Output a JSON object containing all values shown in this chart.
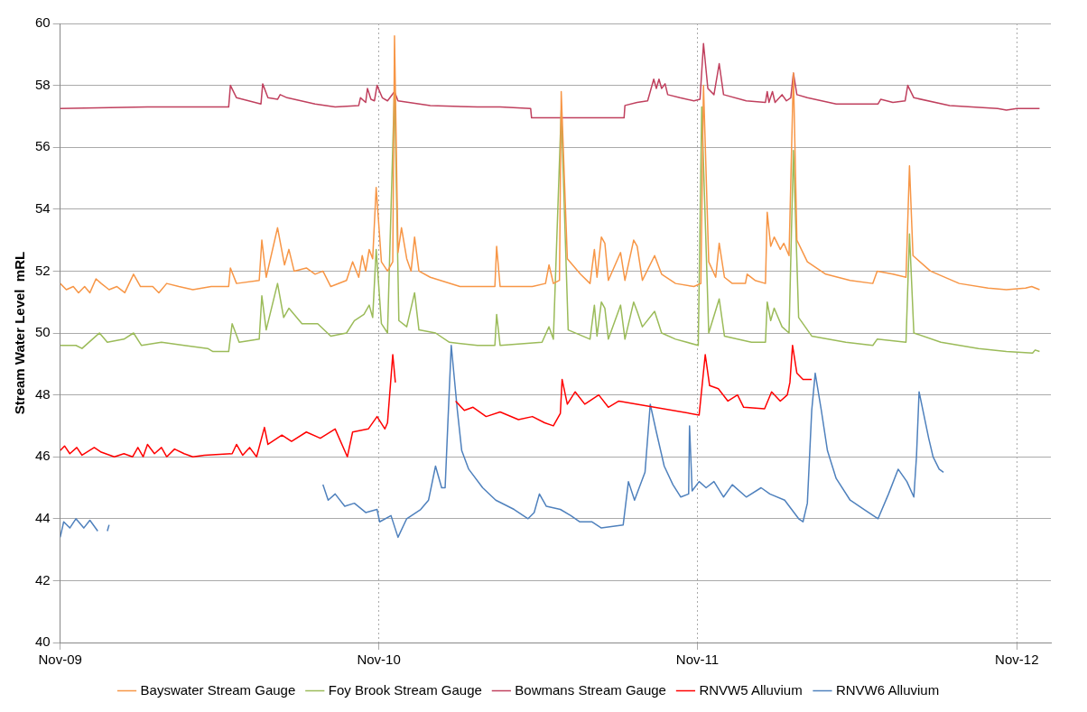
{
  "chart_data": {
    "type": "line",
    "ylabel": "Stream Water Level  mRL",
    "xlim": [
      "2009-11-01",
      "2012-12-10"
    ],
    "xticks": [
      {
        "value": "2009-11-01",
        "label": "Nov-09"
      },
      {
        "value": "2010-11-01",
        "label": "Nov-10"
      },
      {
        "value": "2011-11-01",
        "label": "Nov-11"
      },
      {
        "value": "2012-11-01",
        "label": "Nov-12"
      }
    ],
    "ylim": [
      40,
      60
    ],
    "yticks": [
      40,
      42,
      44,
      46,
      48,
      50,
      52,
      54,
      56,
      58,
      60
    ],
    "grid": true,
    "legend": "bottom",
    "marker": "none",
    "line_style": "solid",
    "series": [
      {
        "name": "Bayswater Stream Gauge",
        "color": "#f79646",
        "x": [
          "2009-11-01",
          "2009-11-08",
          "2009-11-16",
          "2009-11-22",
          "2009-11-29",
          "2009-12-05",
          "2009-12-12",
          "2009-12-18",
          "2009-12-27",
          "2010-01-05",
          "2010-01-14",
          "2010-01-24",
          "2010-02-01",
          "2010-02-15",
          "2010-02-22",
          "2010-03-03",
          "2010-03-17",
          "2010-04-02",
          "2010-04-23",
          "2010-05-13",
          "2010-05-15",
          "2010-05-22",
          "2010-06-17",
          "2010-06-20",
          "2010-06-25",
          "2010-07-08",
          "2010-07-16",
          "2010-07-21",
          "2010-07-27",
          "2010-08-10",
          "2010-08-20",
          "2010-08-29",
          "2010-09-07",
          "2010-09-25",
          "2010-10-02",
          "2010-10-09",
          "2010-10-13",
          "2010-10-17",
          "2010-10-21",
          "2010-10-25",
          "2010-10-29",
          "2010-11-04",
          "2010-11-11",
          "2010-11-17",
          "2010-11-19",
          "2010-11-23",
          "2010-11-27",
          "2010-12-03",
          "2010-12-08",
          "2010-12-12",
          "2010-12-17",
          "2010-12-30",
          "2011-02-02",
          "2011-03-04",
          "2011-03-14",
          "2011-03-16",
          "2011-03-20",
          "2011-04-26",
          "2011-05-11",
          "2011-05-15",
          "2011-05-20",
          "2011-05-27",
          "2011-05-29",
          "2011-06-05",
          "2011-06-20",
          "2011-07-01",
          "2011-07-06",
          "2011-07-09",
          "2011-07-14",
          "2011-07-18",
          "2011-07-22",
          "2011-08-05",
          "2011-08-10",
          "2011-08-20",
          "2011-08-24",
          "2011-08-30",
          "2011-09-13",
          "2011-09-21",
          "2011-10-07",
          "2011-10-28",
          "2011-11-05",
          "2011-11-08",
          "2011-11-14",
          "2011-11-22",
          "2011-11-26",
          "2011-12-02",
          "2011-12-11",
          "2011-12-26",
          "2011-12-28",
          "2012-01-06",
          "2012-01-18",
          "2012-01-20",
          "2012-01-24",
          "2012-01-28",
          "2012-02-04",
          "2012-02-08",
          "2012-02-14",
          "2012-02-19",
          "2012-02-23",
          "2012-03-06",
          "2012-03-27",
          "2012-04-24",
          "2012-05-20",
          "2012-05-25",
          "2012-06-12",
          "2012-06-27",
          "2012-07-01",
          "2012-07-05",
          "2012-07-25",
          "2012-08-27",
          "2012-09-29",
          "2012-10-20",
          "2012-11-11",
          "2012-11-18",
          "2012-11-27"
        ],
        "values": [
          51.6,
          51.4,
          51.5,
          51.3,
          51.5,
          51.3,
          51.75,
          51.6,
          51.4,
          51.5,
          51.3,
          51.9,
          51.5,
          51.5,
          51.3,
          51.6,
          51.5,
          51.4,
          51.5,
          51.5,
          52.1,
          51.6,
          51.7,
          53.0,
          51.8,
          53.4,
          52.2,
          52.7,
          52.0,
          52.1,
          51.9,
          52.0,
          51.5,
          51.7,
          52.3,
          51.8,
          52.5,
          52.0,
          52.7,
          52.4,
          54.7,
          52.3,
          52.0,
          52.3,
          59.6,
          52.6,
          53.4,
          52.4,
          52.0,
          53.1,
          52.0,
          51.8,
          51.5,
          51.5,
          51.5,
          52.8,
          51.5,
          51.5,
          51.6,
          52.2,
          51.6,
          51.7,
          57.8,
          52.4,
          51.9,
          51.6,
          52.7,
          51.8,
          53.1,
          52.9,
          51.7,
          52.6,
          51.7,
          53.0,
          52.8,
          51.7,
          52.5,
          51.9,
          51.6,
          51.5,
          51.6,
          58.0,
          52.3,
          51.8,
          52.9,
          51.8,
          51.6,
          51.6,
          51.9,
          51.7,
          51.6,
          53.9,
          52.8,
          53.1,
          52.7,
          52.9,
          52.5,
          58.4,
          53.0,
          52.3,
          51.9,
          51.7,
          51.6,
          52.0,
          51.9,
          51.8,
          55.4,
          52.5,
          52.0,
          51.6,
          51.45,
          51.4,
          51.45,
          51.5,
          51.4
        ]
      },
      {
        "name": "Foy Brook Stream Gauge",
        "color": "#9bbb59",
        "x": [
          "2009-11-01",
          "2009-11-19",
          "2009-11-26",
          "2009-12-12",
          "2009-12-16",
          "2009-12-25",
          "2010-01-13",
          "2010-01-24",
          "2010-02-02",
          "2010-02-25",
          "2010-03-23",
          "2010-04-19",
          "2010-04-25",
          "2010-05-13",
          "2010-05-17",
          "2010-05-25",
          "2010-06-17",
          "2010-06-20",
          "2010-06-25",
          "2010-07-08",
          "2010-07-15",
          "2010-07-21",
          "2010-08-05",
          "2010-08-23",
          "2010-09-07",
          "2010-09-25",
          "2010-10-04",
          "2010-10-15",
          "2010-10-21",
          "2010-10-25",
          "2010-10-29",
          "2010-11-04",
          "2010-11-11",
          "2010-11-19",
          "2010-11-24",
          "2010-12-03",
          "2010-12-12",
          "2010-12-17",
          "2011-01-05",
          "2011-01-21",
          "2011-02-22",
          "2011-03-14",
          "2011-03-16",
          "2011-03-20",
          "2011-05-07",
          "2011-05-15",
          "2011-05-20",
          "2011-05-29",
          "2011-06-06",
          "2011-07-01",
          "2011-07-06",
          "2011-07-09",
          "2011-07-14",
          "2011-07-18",
          "2011-07-22",
          "2011-08-05",
          "2011-08-10",
          "2011-08-20",
          "2011-08-24",
          "2011-08-30",
          "2011-09-13",
          "2011-09-21",
          "2011-10-07",
          "2011-11-02",
          "2011-11-06",
          "2011-11-14",
          "2011-11-26",
          "2011-12-02",
          "2012-01-02",
          "2012-01-18",
          "2012-01-20",
          "2012-01-24",
          "2012-01-28",
          "2012-02-06",
          "2012-02-14",
          "2012-02-19",
          "2012-02-25",
          "2012-03-11",
          "2012-04-19",
          "2012-05-20",
          "2012-05-25",
          "2012-06-27",
          "2012-07-01",
          "2012-07-06",
          "2012-08-06",
          "2012-09-18",
          "2012-10-20",
          "2012-11-19",
          "2012-11-22",
          "2012-11-27"
        ],
        "values": [
          49.6,
          49.6,
          49.5,
          49.9,
          50.0,
          49.7,
          49.8,
          50.0,
          49.6,
          49.7,
          49.6,
          49.5,
          49.4,
          49.4,
          50.3,
          49.7,
          49.8,
          51.2,
          50.1,
          51.6,
          50.5,
          50.8,
          50.3,
          50.3,
          49.9,
          50.0,
          50.4,
          50.6,
          50.9,
          50.5,
          52.7,
          50.3,
          50.0,
          58.0,
          50.4,
          50.2,
          51.3,
          50.1,
          50.0,
          49.7,
          49.6,
          49.6,
          50.6,
          49.6,
          49.7,
          50.2,
          49.8,
          57.2,
          50.1,
          49.8,
          50.9,
          49.9,
          51.0,
          50.8,
          49.8,
          50.9,
          49.8,
          51.0,
          50.7,
          50.2,
          50.7,
          50.0,
          49.8,
          49.6,
          57.3,
          50.0,
          51.1,
          49.9,
          49.7,
          49.7,
          51.0,
          50.4,
          50.8,
          50.2,
          50.0,
          55.9,
          50.5,
          49.9,
          49.7,
          49.6,
          49.8,
          49.7,
          53.2,
          50.0,
          49.7,
          49.5,
          49.4,
          49.35,
          49.45,
          49.4
        ]
      },
      {
        "name": "Bowmans Stream Gauge",
        "color": "#c0405e",
        "x": [
          "2009-11-01",
          "2010-02-09",
          "2010-05-13",
          "2010-05-15",
          "2010-05-22",
          "2010-06-19",
          "2010-06-21",
          "2010-06-27",
          "2010-07-08",
          "2010-07-11",
          "2010-07-19",
          "2010-08-20",
          "2010-09-12",
          "2010-10-09",
          "2010-10-11",
          "2010-10-17",
          "2010-10-19",
          "2010-10-23",
          "2010-10-27",
          "2010-10-30",
          "2010-11-05",
          "2010-11-11",
          "2010-11-19",
          "2010-11-23",
          "2010-12-30",
          "2011-02-22",
          "2011-03-20",
          "2011-04-24",
          "2011-04-25",
          "2011-08-09",
          "2011-08-10",
          "2011-08-24",
          "2011-09-05",
          "2011-09-08",
          "2011-09-12",
          "2011-09-15",
          "2011-09-18",
          "2011-09-21",
          "2011-09-25",
          "2011-09-28",
          "2011-10-12",
          "2011-10-28",
          "2011-11-04",
          "2011-11-08",
          "2011-11-13",
          "2011-11-20",
          "2011-11-26",
          "2011-12-01",
          "2011-12-27",
          "2012-01-18",
          "2012-01-20",
          "2012-01-22",
          "2012-01-26",
          "2012-01-29",
          "2012-02-06",
          "2012-02-11",
          "2012-02-16",
          "2012-02-19",
          "2012-02-23",
          "2012-03-06",
          "2012-04-08",
          "2012-05-26",
          "2012-05-29",
          "2012-06-12",
          "2012-06-26",
          "2012-06-29",
          "2012-07-06",
          "2012-08-16",
          "2012-10-10",
          "2012-10-20",
          "2012-11-01",
          "2012-11-27"
        ],
        "values": [
          57.25,
          57.3,
          57.3,
          58.0,
          57.6,
          57.4,
          58.05,
          57.6,
          57.55,
          57.7,
          57.6,
          57.4,
          57.3,
          57.35,
          57.6,
          57.45,
          57.9,
          57.55,
          57.5,
          58.0,
          57.6,
          57.5,
          57.8,
          57.5,
          57.35,
          57.3,
          57.3,
          57.25,
          56.95,
          56.95,
          57.35,
          57.45,
          57.5,
          57.8,
          58.2,
          57.9,
          58.2,
          57.9,
          58.05,
          57.7,
          57.6,
          57.5,
          57.55,
          59.35,
          57.9,
          57.7,
          58.7,
          57.7,
          57.5,
          57.45,
          57.8,
          57.45,
          57.8,
          57.45,
          57.7,
          57.5,
          57.6,
          58.4,
          57.7,
          57.6,
          57.4,
          57.4,
          57.55,
          57.45,
          57.5,
          58.0,
          57.6,
          57.35,
          57.25,
          57.2,
          57.25,
          57.25
        ]
      },
      {
        "name": "RNVW5 Alluvium",
        "color": "#ff0000",
        "x": [
          "2009-11-01",
          "2009-11-06",
          "2009-11-12",
          "2009-11-20",
          "2009-11-26",
          "2009-12-10",
          "2009-12-18",
          "2010-01-02",
          "2010-01-13",
          "2010-01-23",
          "2010-01-29",
          "2010-02-04",
          "2010-02-09",
          "2010-02-17",
          "2010-02-25",
          "2010-03-03",
          "2010-03-12",
          "2010-03-23",
          "2010-04-02",
          "2010-04-15",
          "2010-05-17",
          "2010-05-22",
          "2010-05-29",
          "2010-06-06",
          "2010-06-14",
          "2010-06-23",
          "2010-06-27",
          "2010-07-13",
          "2010-07-24",
          "2010-08-10",
          "2010-08-26",
          "2010-09-12",
          "2010-09-26",
          "2010-10-02",
          "2010-10-20",
          "2010-10-30",
          "2010-11-08",
          "2010-11-11",
          "2010-11-17",
          "2010-11-20",
          "2010-12-15",
          "2011-01-28",
          "2011-02-07",
          "2011-02-17",
          "2011-03-04",
          "2011-03-20",
          "2011-04-10",
          "2011-04-26",
          "2011-05-10",
          "2011-05-20",
          "2011-05-28",
          "2011-05-30",
          "2011-06-05",
          "2011-06-14",
          "2011-06-25",
          "2011-07-11",
          "2011-07-22",
          "2011-08-03",
          "2011-11-03",
          "2011-11-10",
          "2011-11-15",
          "2011-11-25",
          "2011-12-06",
          "2011-12-17",
          "2011-12-24",
          "2012-01-17",
          "2012-01-25",
          "2012-02-04",
          "2012-02-12",
          "2012-02-15",
          "2012-02-18",
          "2012-02-23",
          "2012-03-01",
          "2012-03-11"
        ],
        "values": [
          46.2,
          46.35,
          46.1,
          46.3,
          46.05,
          46.3,
          46.15,
          46.0,
          46.1,
          46.0,
          46.3,
          46.0,
          46.4,
          46.1,
          46.3,
          46.0,
          46.25,
          46.1,
          46.0,
          46.05,
          46.1,
          46.4,
          46.05,
          46.3,
          46.0,
          46.95,
          46.4,
          46.7,
          46.5,
          46.8,
          46.6,
          46.9,
          46.0,
          46.8,
          46.9,
          47.3,
          46.9,
          47.1,
          49.3,
          48.4,
          null,
          47.8,
          47.5,
          47.6,
          47.3,
          47.45,
          47.2,
          47.3,
          47.1,
          47.0,
          47.4,
          48.5,
          47.7,
          48.1,
          47.7,
          48.0,
          47.6,
          47.8,
          47.35,
          49.3,
          48.3,
          48.2,
          47.8,
          48.0,
          47.6,
          47.55,
          48.1,
          47.8,
          48.0,
          48.4,
          49.6,
          48.7,
          48.5,
          48.5
        ]
      },
      {
        "name": "RNVW6 Alluvium",
        "color": "#4f81bd",
        "x": [
          "2009-11-01",
          "2009-11-05",
          "2009-11-12",
          "2009-11-19",
          "2009-11-28",
          "2009-12-05",
          "2009-12-14",
          "2009-12-18",
          "2009-12-25",
          "2009-12-27",
          "2010-04-01",
          "2010-08-29",
          "2010-09-04",
          "2010-09-12",
          "2010-09-23",
          "2010-10-04",
          "2010-10-17",
          "2010-10-30",
          "2010-11-02",
          "2010-11-15",
          "2010-11-23",
          "2010-12-03",
          "2010-12-19",
          "2010-12-28",
          "2011-01-05",
          "2011-01-12",
          "2011-01-16",
          "2011-01-19",
          "2011-01-23",
          "2011-01-30",
          "2011-02-04",
          "2011-02-12",
          "2011-02-28",
          "2011-03-15",
          "2011-04-05",
          "2011-04-21",
          "2011-04-28",
          "2011-05-04",
          "2011-05-12",
          "2011-05-28",
          "2011-06-09",
          "2011-06-19",
          "2011-07-03",
          "2011-07-14",
          "2011-08-08",
          "2011-08-14",
          "2011-08-21",
          "2011-09-02",
          "2011-09-08",
          "2011-09-15",
          "2011-09-24",
          "2011-10-04",
          "2011-10-13",
          "2011-10-22",
          "2011-10-23",
          "2011-10-26",
          "2011-11-03",
          "2011-11-11",
          "2011-11-20",
          "2011-12-01",
          "2011-12-11",
          "2011-12-27",
          "2012-01-13",
          "2012-01-23",
          "2012-02-09",
          "2012-02-25",
          "2012-03-01",
          "2012-03-06",
          "2012-03-11",
          "2012-03-15",
          "2012-03-22",
          "2012-03-29",
          "2012-04-08",
          "2012-04-24",
          "2012-05-10",
          "2012-05-26",
          "2012-06-07",
          "2012-06-18",
          "2012-06-28",
          "2012-07-06",
          "2012-07-09",
          "2012-07-12",
          "2012-07-23",
          "2012-07-28",
          "2012-08-04",
          "2012-08-09"
        ],
        "values": [
          43.4,
          43.9,
          43.7,
          44.0,
          43.7,
          43.95,
          43.6,
          null,
          43.6,
          43.8,
          null,
          45.1,
          44.6,
          44.8,
          44.4,
          44.5,
          44.2,
          44.3,
          43.9,
          44.1,
          43.4,
          44.0,
          44.3,
          44.6,
          45.7,
          45.0,
          45.0,
          47.0,
          49.6,
          47.5,
          46.2,
          45.6,
          45.0,
          44.6,
          44.3,
          44.0,
          44.2,
          44.8,
          44.4,
          44.3,
          44.1,
          43.9,
          43.9,
          43.7,
          43.8,
          45.2,
          44.6,
          45.5,
          47.7,
          46.8,
          45.7,
          45.1,
          44.7,
          44.8,
          47.0,
          44.9,
          45.2,
          45.0,
          45.2,
          44.7,
          45.1,
          44.7,
          45.0,
          44.8,
          44.6,
          44.0,
          43.9,
          44.5,
          47.5,
          48.7,
          47.5,
          46.2,
          45.3,
          44.6,
          44.3,
          44.0,
          44.8,
          45.6,
          45.2,
          44.7,
          46.0,
          48.1,
          46.6,
          46.0,
          45.6,
          45.5
        ]
      }
    ]
  }
}
